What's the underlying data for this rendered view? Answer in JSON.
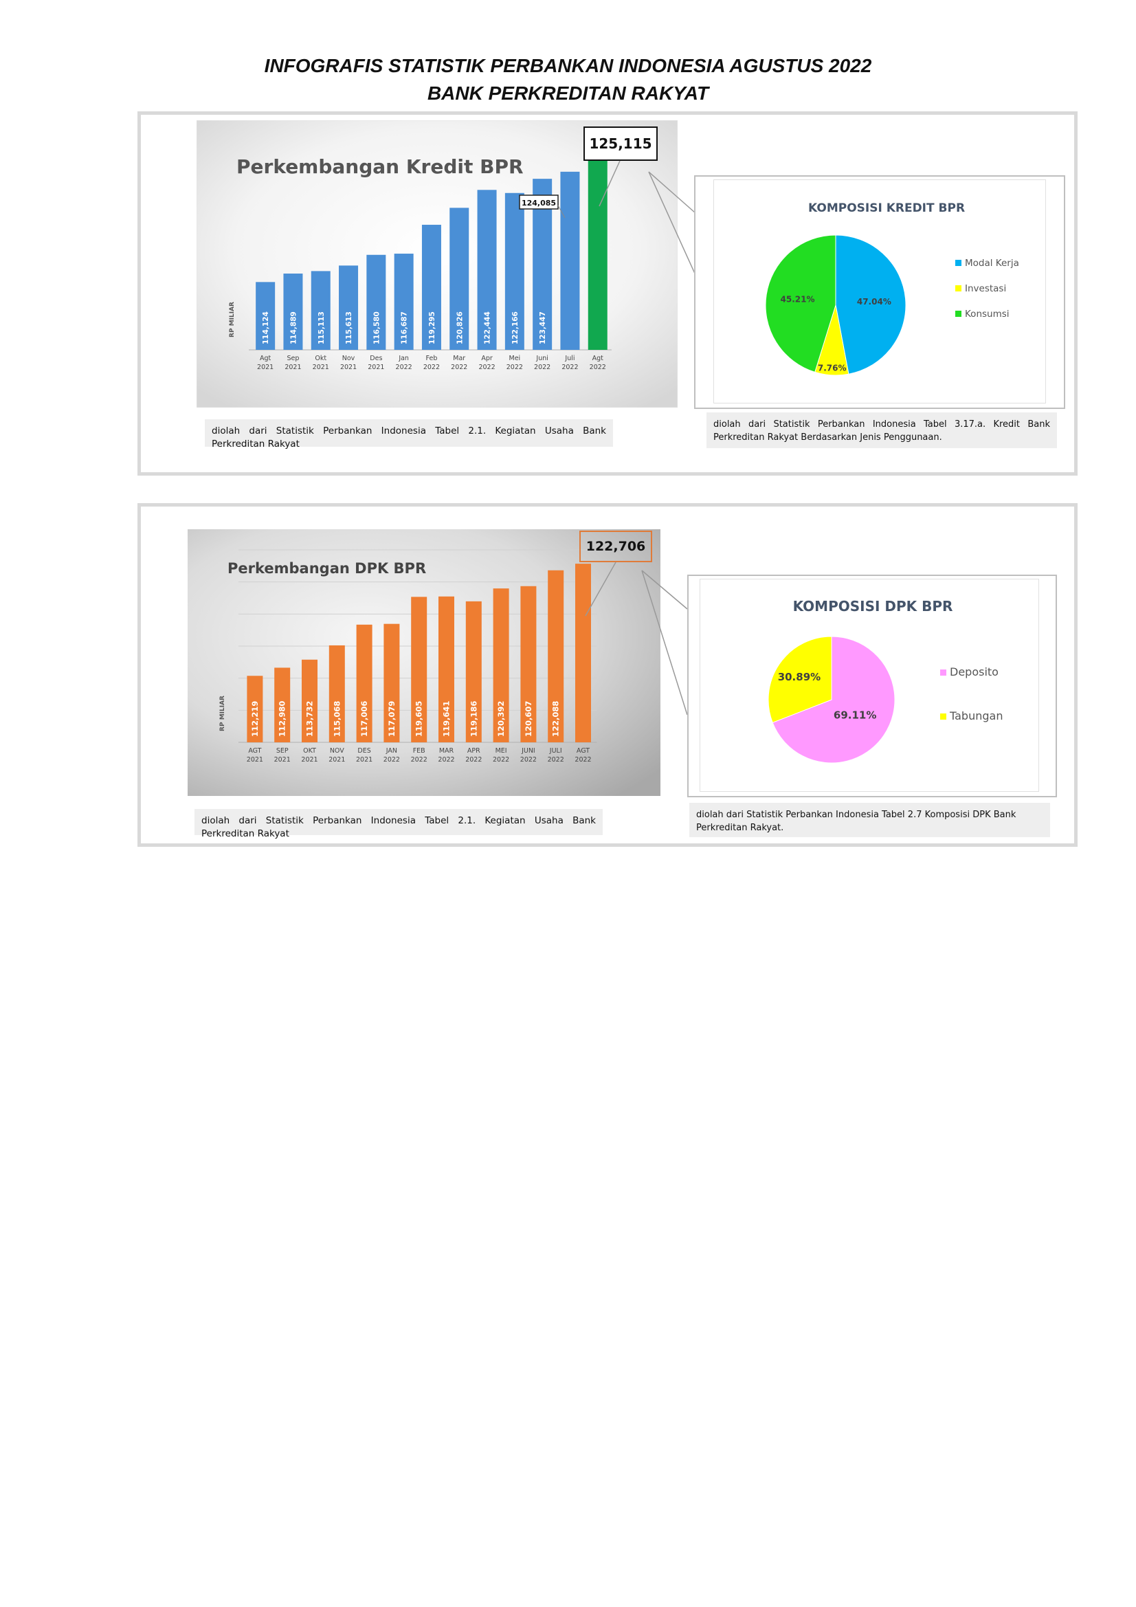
{
  "page": {
    "title_line1": "INFOGRAFIS STATISTIK PERBANKAN INDONESIA AGUSTUS 2022",
    "title_line2": "BANK PERKREDITAN RAKYAT"
  },
  "colors": {
    "kredit_bar": "#4a8fd6",
    "kredit_highlight": "#11a84f",
    "dpk_bar": "#ee7d31",
    "modal_kerja": "#00b0f0",
    "investasi": "#ffff00",
    "konsumsi": "#22dd22",
    "deposito": "#ff99ff",
    "tabungan": "#ffff00"
  },
  "kredit": {
    "source": "diolah dari Statistik Perbankan Indonesia Tabel 2.1. Kegiatan Usaha Bank Perkreditan Rakyat",
    "callout_latest": "125,115",
    "callout_prev": "124,085"
  },
  "kredit_pie": {
    "source": "diolah dari Statistik Perbankan Indonesia Tabel 3.17.a. Kredit Bank Perkreditan Rakyat Berdasarkan Jenis Penggunaan."
  },
  "dpk": {
    "source": "diolah dari Statistik Perbankan Indonesia Tabel 2.1. Kegiatan Usaha Bank Perkreditan Rakyat",
    "callout_latest": "122,706"
  },
  "dpk_pie": {
    "source": "diolah dari Statistik Perbankan Indonesia Tabel 2.7 Komposisi DPK Bank Perkreditan Rakyat."
  },
  "chart_data": [
    {
      "type": "bar",
      "title": "Perkembangan Kredit BPR",
      "ylabel": "RP MILIAR",
      "categories": [
        [
          "Agt",
          "2021"
        ],
        [
          "Sep",
          "2021"
        ],
        [
          "Okt",
          "2021"
        ],
        [
          "Nov",
          "2021"
        ],
        [
          "Des",
          "2021"
        ],
        [
          "Jan",
          "2022"
        ],
        [
          "Feb",
          "2022"
        ],
        [
          "Mar",
          "2022"
        ],
        [
          "Apr",
          "2022"
        ],
        [
          "Mei",
          "2022"
        ],
        [
          "Juni",
          "2022"
        ],
        [
          "Juli",
          "2022"
        ],
        [
          "Agt",
          "2022"
        ]
      ],
      "values": [
        114124,
        114889,
        115113,
        115613,
        116580,
        116687,
        119295,
        120826,
        122444,
        122166,
        123447,
        124085,
        125115
      ],
      "labels": [
        "114,124",
        "114,889",
        "115,113",
        "115,613",
        "116,580",
        "116,687",
        "119,295",
        "120,826",
        "122,444",
        "122,166",
        "123,447",
        "",
        ""
      ],
      "ylim": [
        108000,
        126000
      ],
      "grid": false,
      "highlight_index": 12
    },
    {
      "type": "pie",
      "title": "KOMPOSISI KREDIT BPR",
      "legend_position": "right",
      "slices": [
        {
          "name": "Modal Kerja",
          "value": 47.04,
          "label": "47.04%"
        },
        {
          "name": "Investasi",
          "value": 7.76,
          "label": "7.76%"
        },
        {
          "name": "Konsumsi",
          "value": 45.21,
          "label": "45.21%"
        }
      ]
    },
    {
      "type": "bar",
      "title": "Perkembangan DPK BPR",
      "ylabel": "RP MILIAR",
      "categories": [
        [
          "AGT",
          "2021"
        ],
        [
          "SEP",
          "2021"
        ],
        [
          "OKT",
          "2021"
        ],
        [
          "NOV",
          "2021"
        ],
        [
          "DES",
          "2021"
        ],
        [
          "JAN",
          "2022"
        ],
        [
          "FEB",
          "2022"
        ],
        [
          "MAR",
          "2022"
        ],
        [
          "APR",
          "2022"
        ],
        [
          "MEI",
          "2022"
        ],
        [
          "JUNI",
          "2022"
        ],
        [
          "JULI",
          "2022"
        ],
        [
          "AGT",
          "2022"
        ]
      ],
      "values": [
        112219,
        112980,
        113732,
        115068,
        117006,
        117079,
        119605,
        119641,
        119186,
        120392,
        120607,
        122088,
        122706
      ],
      "labels": [
        "112,219",
        "112,980",
        "113,732",
        "115,068",
        "117,006",
        "117,079",
        "119,605",
        "119,641",
        "119,186",
        "120,392",
        "120,607",
        "122,088",
        ""
      ],
      "ylim": [
        106000,
        124000
      ],
      "grid": true
    },
    {
      "type": "pie",
      "title": "KOMPOSISI DPK BPR",
      "legend_position": "right",
      "slices": [
        {
          "name": "Deposito",
          "value": 69.11,
          "label": "69.11%"
        },
        {
          "name": "Tabungan",
          "value": 30.89,
          "label": "30.89%"
        }
      ]
    }
  ]
}
